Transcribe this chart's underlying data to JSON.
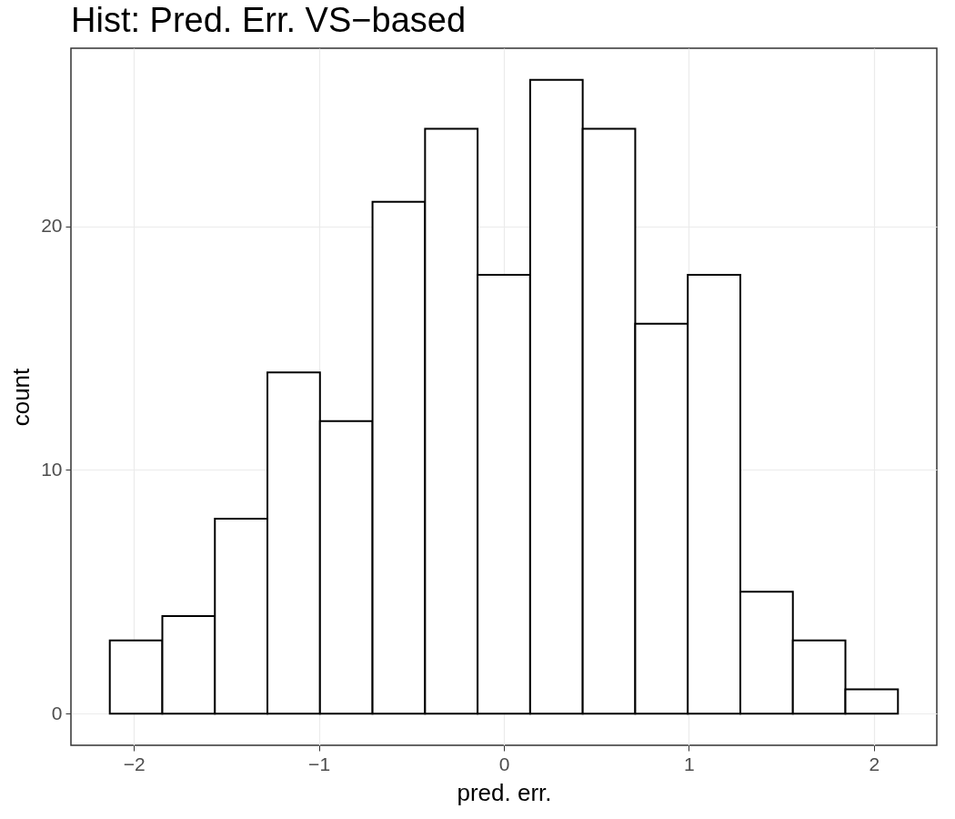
{
  "chart_data": {
    "type": "histogram",
    "title": "Hist: Pred. Err. VS−based",
    "xlabel": "pred. err.",
    "ylabel": "count",
    "bins": [
      -2.13,
      -1.846,
      -1.562,
      -1.278,
      -0.994,
      -0.71,
      -0.426,
      -0.142,
      0.142,
      0.426,
      0.71,
      0.994,
      1.278,
      1.562,
      1.846,
      2.13
    ],
    "values": [
      3,
      4,
      8,
      14,
      12,
      21,
      24,
      18,
      26,
      24,
      16,
      18,
      5,
      3,
      1
    ],
    "color": "#ffffff",
    "xlim": [
      -2.34,
      2.34
    ],
    "ylim": [
      -1.3,
      27.3
    ],
    "xticks": [
      {
        "value": -2,
        "label": "−2"
      },
      {
        "value": -1,
        "label": "−1"
      },
      0,
      1,
      2
    ],
    "yticks": [
      0,
      10,
      20
    ],
    "grid": true
  }
}
